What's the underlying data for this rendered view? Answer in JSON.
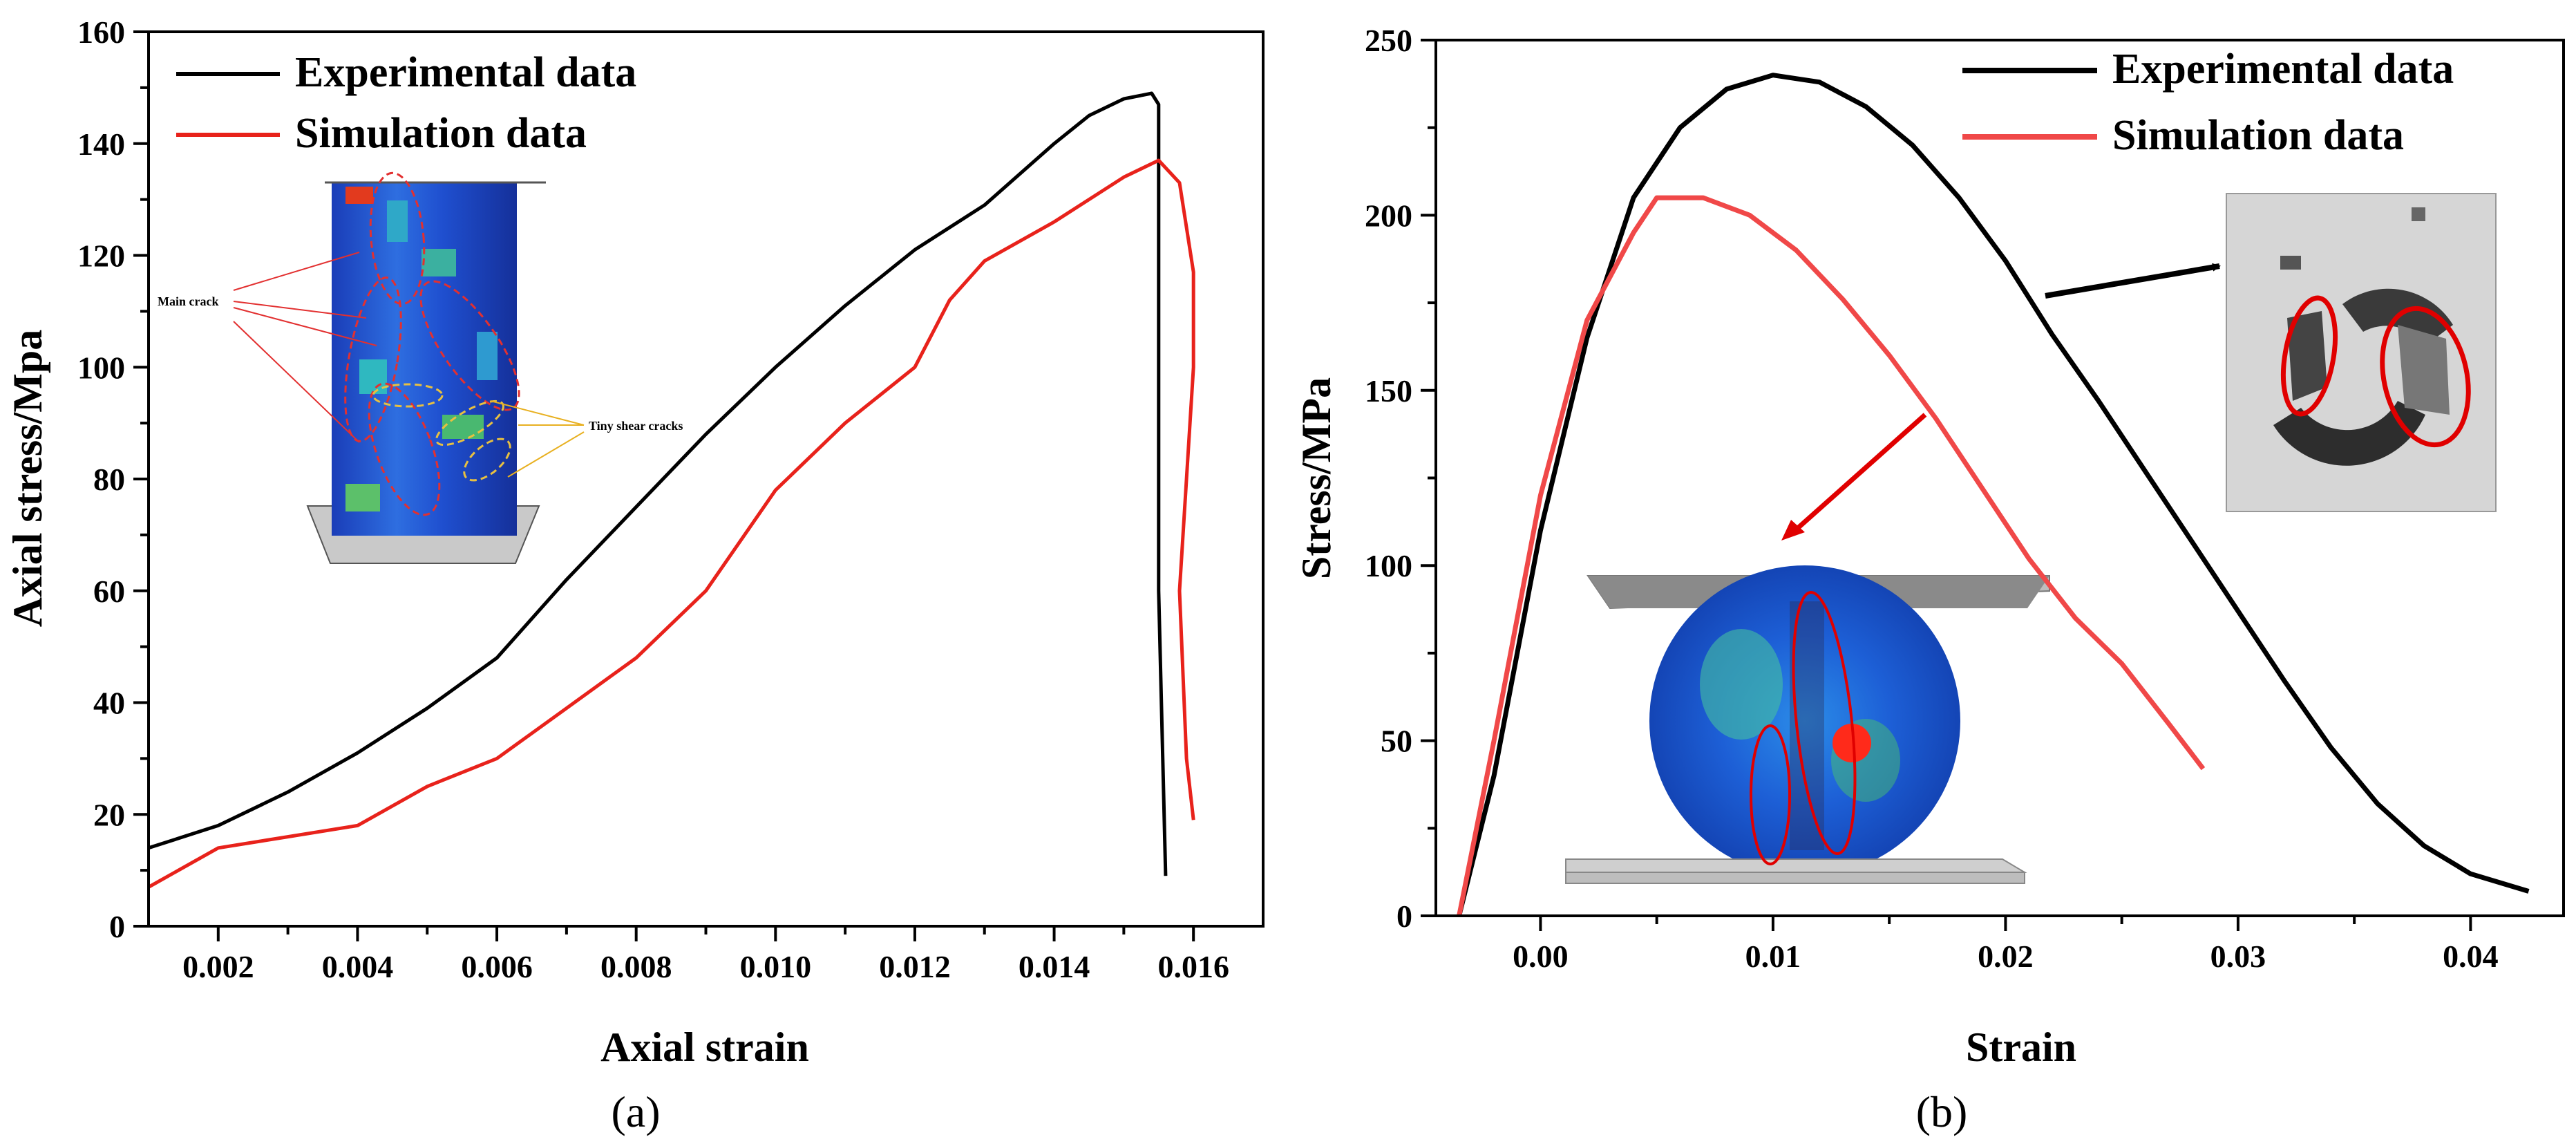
{
  "chart_data": [
    {
      "type": "line",
      "panel_label": "(a)",
      "xlabel": "Axial strain",
      "ylabel": "Axial stress/Mpa",
      "xlim": [
        0.001,
        0.017
      ],
      "ylim": [
        0,
        160
      ],
      "xticks": [
        0.002,
        0.004,
        0.006,
        0.008,
        0.01,
        0.012,
        0.014,
        0.016
      ],
      "xtick_labels": [
        "0.002",
        "0.004",
        "0.006",
        "0.008",
        "0.010",
        "0.012",
        "0.014",
        "0.016"
      ],
      "yticks": [
        0,
        20,
        40,
        60,
        80,
        100,
        120,
        140,
        160
      ],
      "ytick_labels": [
        "0",
        "20",
        "40",
        "60",
        "80",
        "100",
        "120",
        "140",
        "160"
      ],
      "legend_position": "top-left",
      "annotations": [
        "Main crack",
        "Tiny shear cracks"
      ],
      "series": [
        {
          "name": "Experimental data",
          "color": "#000000",
          "points": [
            [
              0.001,
              14
            ],
            [
              0.002,
              18
            ],
            [
              0.003,
              24
            ],
            [
              0.004,
              31
            ],
            [
              0.005,
              39
            ],
            [
              0.006,
              48
            ],
            [
              0.0065,
              55
            ],
            [
              0.007,
              62
            ],
            [
              0.008,
              75
            ],
            [
              0.009,
              88
            ],
            [
              0.01,
              100
            ],
            [
              0.011,
              111
            ],
            [
              0.012,
              121
            ],
            [
              0.013,
              129
            ],
            [
              0.014,
              140
            ],
            [
              0.0145,
              145
            ],
            [
              0.015,
              148
            ],
            [
              0.0154,
              149
            ],
            [
              0.0155,
              147
            ],
            [
              0.0155,
              60
            ],
            [
              0.0156,
              9
            ]
          ]
        },
        {
          "name": "Simulation data",
          "color": "#e8221b",
          "points": [
            [
              0.001,
              7
            ],
            [
              0.002,
              14
            ],
            [
              0.003,
              16
            ],
            [
              0.004,
              18
            ],
            [
              0.005,
              25
            ],
            [
              0.006,
              30
            ],
            [
              0.007,
              39
            ],
            [
              0.008,
              48
            ],
            [
              0.009,
              60
            ],
            [
              0.01,
              78
            ],
            [
              0.011,
              90
            ],
            [
              0.012,
              100
            ],
            [
              0.0125,
              112
            ],
            [
              0.013,
              119
            ],
            [
              0.014,
              126
            ],
            [
              0.015,
              134
            ],
            [
              0.0155,
              137
            ],
            [
              0.0158,
              133
            ],
            [
              0.016,
              117
            ],
            [
              0.016,
              100
            ],
            [
              0.0158,
              60
            ],
            [
              0.0159,
              30
            ],
            [
              0.016,
              19
            ]
          ]
        }
      ]
    },
    {
      "type": "line",
      "panel_label": "(b)",
      "xlabel": "Strain",
      "ylabel": "Stress/MPa",
      "xlim": [
        -0.0045,
        0.044
      ],
      "ylim": [
        0,
        250
      ],
      "xticks": [
        0.0,
        0.01,
        0.02,
        0.03,
        0.04
      ],
      "xtick_labels": [
        "0.00",
        "0.01",
        "0.02",
        "0.03",
        "0.04"
      ],
      "yticks": [
        0,
        50,
        100,
        150,
        200,
        250
      ],
      "ytick_labels": [
        "0",
        "50",
        "100",
        "150",
        "200",
        "250"
      ],
      "legend_position": "top-right",
      "series": [
        {
          "name": "Experimental data",
          "color": "#000000",
          "points": [
            [
              -0.0035,
              0
            ],
            [
              -0.002,
              40
            ],
            [
              0.0,
              110
            ],
            [
              0.002,
              165
            ],
            [
              0.004,
              205
            ],
            [
              0.006,
              225
            ],
            [
              0.008,
              236
            ],
            [
              0.01,
              240
            ],
            [
              0.012,
              238
            ],
            [
              0.014,
              231
            ],
            [
              0.016,
              220
            ],
            [
              0.018,
              205
            ],
            [
              0.02,
              187
            ],
            [
              0.022,
              166
            ],
            [
              0.024,
              147
            ],
            [
              0.026,
              127
            ],
            [
              0.028,
              107
            ],
            [
              0.03,
              87
            ],
            [
              0.032,
              67
            ],
            [
              0.034,
              48
            ],
            [
              0.036,
              32
            ],
            [
              0.038,
              20
            ],
            [
              0.04,
              12
            ],
            [
              0.0425,
              7
            ]
          ]
        },
        {
          "name": "Simulation data",
          "color": "#f04848",
          "points": [
            [
              -0.0035,
              0
            ],
            [
              -0.002,
              50
            ],
            [
              0.0,
              120
            ],
            [
              0.002,
              170
            ],
            [
              0.004,
              195
            ],
            [
              0.005,
              205
            ],
            [
              0.007,
              205
            ],
            [
              0.009,
              200
            ],
            [
              0.011,
              190
            ],
            [
              0.013,
              176
            ],
            [
              0.015,
              160
            ],
            [
              0.017,
              142
            ],
            [
              0.019,
              122
            ],
            [
              0.021,
              102
            ],
            [
              0.023,
              85
            ],
            [
              0.025,
              72
            ],
            [
              0.027,
              55
            ],
            [
              0.0285,
              42
            ]
          ]
        }
      ]
    }
  ]
}
